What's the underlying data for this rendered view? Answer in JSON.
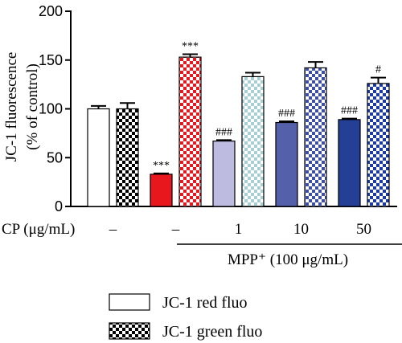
{
  "chart_data": {
    "type": "bar",
    "ylabel_line1": "JC-1 fluorescence",
    "ylabel_line2": "(% of control)",
    "ylim": [
      0,
      200
    ],
    "yticks": [
      0,
      50,
      100,
      150,
      200
    ],
    "grid": false,
    "groups": [
      {
        "cp": "",
        "mpp": false,
        "red": 100,
        "red_err": 3,
        "green": 100,
        "green_err": 6,
        "red_mark": "",
        "green_mark": "",
        "red_color": "#ffffff",
        "green_color": "#000000"
      },
      {
        "cp": "–",
        "mpp": true,
        "red": 33,
        "red_err": 0.8,
        "green": 153,
        "green_err": 3,
        "red_mark": "***",
        "green_mark": "***",
        "red_color": "#e8161d",
        "green_color": "#e8161d"
      },
      {
        "cp": "1",
        "mpp": true,
        "red": 67,
        "red_err": 1,
        "green": 133,
        "green_err": 4,
        "red_mark": "###",
        "green_mark": "",
        "red_color": "#bdbbe0",
        "green_color": "#a8cfd4"
      },
      {
        "cp": "10",
        "mpp": true,
        "red": 86,
        "red_err": 1.2,
        "green": 142,
        "green_err": 6,
        "red_mark": "###",
        "green_mark": "",
        "red_color": "#5560ab",
        "green_color": "#3e4fa6"
      },
      {
        "cp": "50",
        "mpp": true,
        "red": 89,
        "red_err": 1,
        "green": 126,
        "green_err": 6,
        "red_mark": "###",
        "green_mark": "#",
        "red_color": "#243f96",
        "green_color": "#1c3aa6"
      }
    ],
    "row_label": "CP (μg/mL)",
    "first_cp": "–",
    "mpp_label": "MPP⁺ (100 μg/mL)",
    "legend": [
      {
        "name": "JC-1 red fluo",
        "style": "solid"
      },
      {
        "name": "JC-1 green fluo",
        "style": "checker"
      }
    ],
    "legend_position": "bottom-left"
  }
}
